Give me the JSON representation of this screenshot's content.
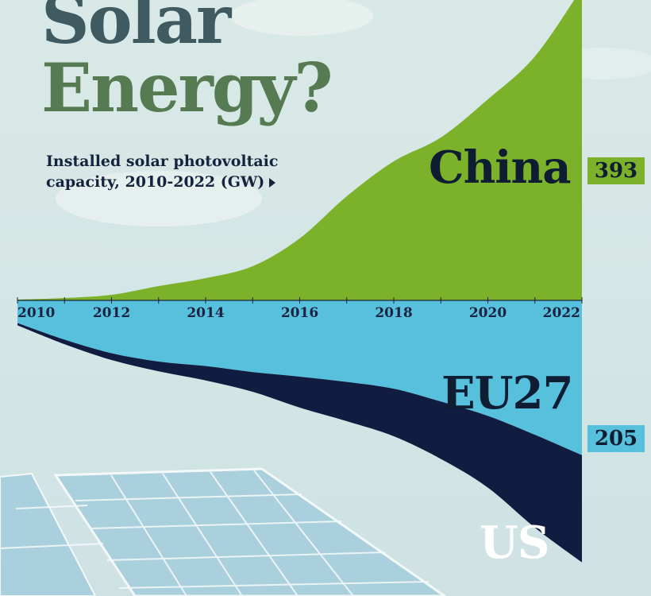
{
  "header": {
    "title_line1": "Solar",
    "title_line2": "Energy?",
    "subtitle_line1": "Installed solar photovoltaic",
    "subtitle_line2": "capacity, 2010-2022 (GW)"
  },
  "colors": {
    "china": "#7bb22a",
    "eu27": "#57c0dd",
    "us": "#111d40",
    "axis": "#1b2340"
  },
  "chart_data": {
    "type": "area",
    "x": [
      2010,
      2011,
      2012,
      2013,
      2014,
      2015,
      2016,
      2017,
      2018,
      2019,
      2020,
      2021,
      2022
    ],
    "x_ticks": [
      "2010",
      "2012",
      "2014",
      "2016",
      "2018",
      "2020",
      "2022"
    ],
    "series": [
      {
        "name": "China",
        "values": [
          1,
          3,
          7,
          18,
          28,
          43,
          78,
          131,
          175,
          205,
          253,
          307,
          393
        ]
      },
      {
        "name": "EU27",
        "values": [
          30,
          52,
          70,
          81,
          87,
          95,
          101,
          108,
          117,
          134,
          153,
          178,
          205
        ]
      },
      {
        "name": "US",
        "values": [
          3,
          6,
          9,
          13,
          19,
          26,
          41,
          52,
          63,
          76,
          95,
          123,
          142
        ]
      }
    ],
    "end_labels": {
      "China": "393",
      "EU27": "205"
    },
    "layout": "diverging: China above axis, EU27 and US below axis",
    "ylim": [
      -380,
      400
    ],
    "grid": false,
    "legend": "direct labels at right"
  }
}
